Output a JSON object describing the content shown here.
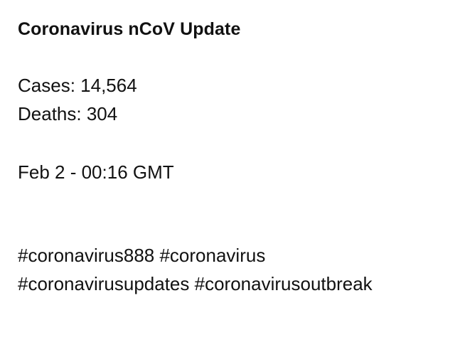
{
  "post": {
    "title": "Coronavirus nCoV Update",
    "cases_line": "Cases: 14,564",
    "deaths_line": "Deaths: 304",
    "timestamp": "Feb 2 - 00:16 GMT",
    "hashtags": [
      "#coronavirus888",
      "#coronavirus",
      "#coronavirusupdates",
      "#coronavirusoutbreak"
    ]
  },
  "colors": {
    "background": "#ffffff",
    "text": "#111111"
  }
}
